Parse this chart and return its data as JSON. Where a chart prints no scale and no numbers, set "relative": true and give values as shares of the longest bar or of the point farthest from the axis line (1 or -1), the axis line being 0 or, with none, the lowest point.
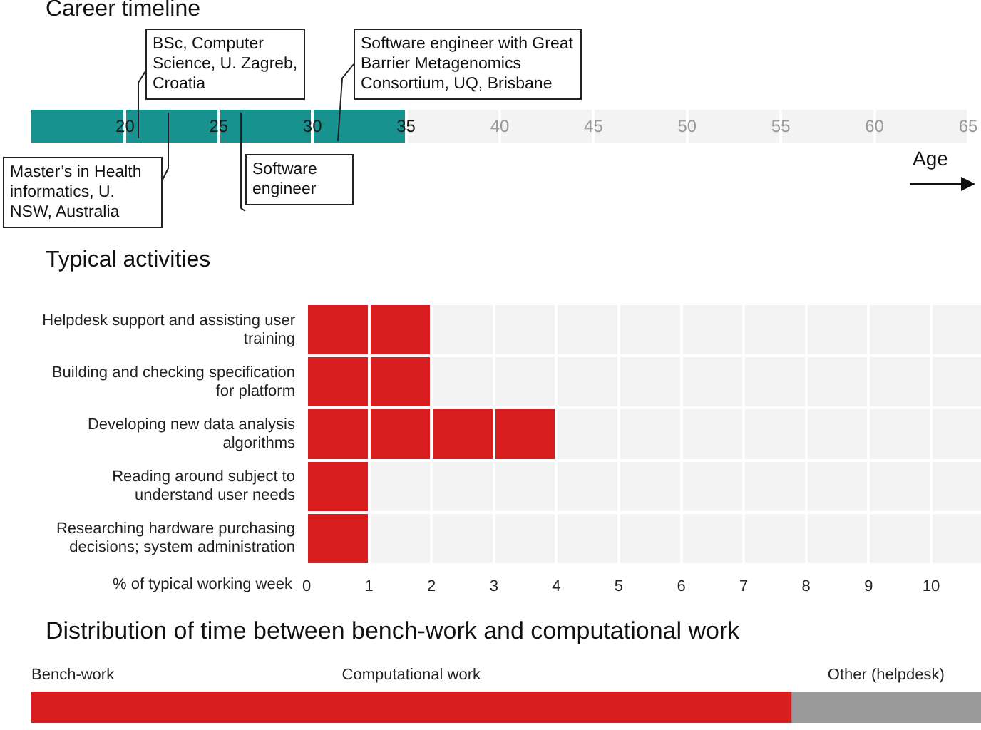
{
  "chart_data": [
    {
      "type": "bar",
      "title": "Career timeline",
      "orientation": "horizontal",
      "xlabel": "Age",
      "categories": [
        null
      ],
      "values": [
        20
      ],
      "base": [
        15
      ],
      "color": "#17928f",
      "xlim": [
        15,
        65
      ],
      "xticks": [
        20,
        25,
        30,
        35,
        40,
        45,
        50,
        55,
        60,
        65
      ],
      "grid": "x",
      "annotations": [
        "Master’s in Health informatics, U. NSW, Australia",
        "BSc, Computer Science, U. Zagreb, Croatia",
        "Software engineer",
        "Software engineer with Great Barrier Metagenomics Consortium, UQ, Brisbane"
      ]
    },
    {
      "type": "bar",
      "title": "Typical activities",
      "orientation": "horizontal",
      "xlabel": "% of typical working week",
      "categories": [
        "Helpdesk support and assisting user training",
        "Building and checking specification for platform",
        "Developing new data analysis algorithms",
        "Reading around subject to understand user needs",
        "Researching hardware purchasing decisions; system administration"
      ],
      "values": [
        2,
        2,
        4,
        1,
        1
      ],
      "color": "#d71d1d",
      "xlim": [
        0,
        10.8
      ],
      "xticks": [
        0,
        1,
        2,
        3,
        4,
        5,
        6,
        7,
        8,
        9,
        10
      ],
      "grid": true
    },
    {
      "type": "bar",
      "title": "Distribution of time between bench-work and computational work",
      "orientation": "horizontal",
      "stacked": true,
      "relative": true,
      "categories": [
        null
      ],
      "series": [
        {
          "name": "Bench-work",
          "color": "#d71d1d",
          "values": [
            0
          ]
        },
        {
          "name": "Computational work",
          "color": "#d71d1d",
          "values": [
            0.8
          ]
        },
        {
          "name": "Other (helpdesk)",
          "color": "#9a9a9a",
          "values": [
            0.2
          ]
        }
      ]
    }
  ]
}
